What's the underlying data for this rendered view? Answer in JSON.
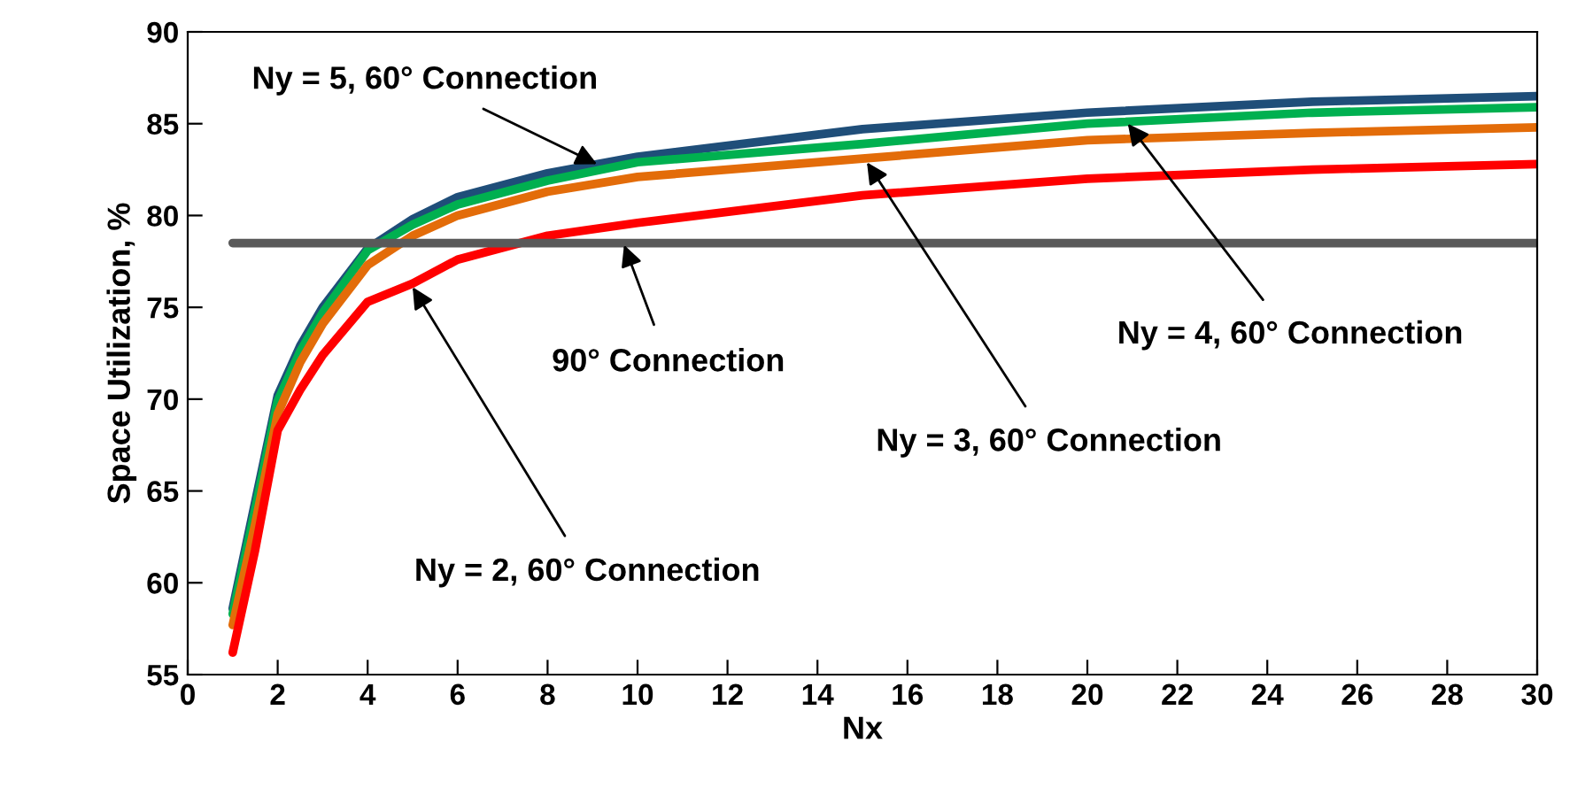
{
  "chart_data": {
    "type": "line",
    "xlabel": "Nx",
    "ylabel": "Space Utilization, %",
    "x": [
      1,
      1.5,
      2,
      2.5,
      3,
      4,
      5,
      6,
      8,
      10,
      15,
      20,
      25,
      30
    ],
    "series": [
      {
        "color": "#1f4e79",
        "values": [
          58.6,
          64.4,
          70.2,
          72.9,
          75.0,
          78.2,
          79.8,
          81.0,
          82.3,
          83.2,
          84.7,
          85.6,
          86.2,
          86.5
        ]
      },
      {
        "color": "#00b050",
        "values": [
          58.3,
          64.0,
          69.9,
          72.6,
          74.7,
          78.1,
          79.5,
          80.6,
          81.9,
          82.9,
          83.9,
          85.0,
          85.6,
          85.9
        ]
      },
      {
        "color": "#e36c09",
        "values": [
          57.7,
          63.2,
          69.2,
          72.0,
          74.1,
          77.3,
          78.9,
          80.0,
          81.3,
          82.1,
          83.1,
          84.1,
          84.5,
          84.8
        ]
      },
      {
        "color": "#ff0000",
        "values": [
          56.2,
          61.8,
          68.3,
          70.5,
          72.4,
          75.3,
          76.3,
          77.6,
          78.9,
          79.6,
          81.1,
          82.0,
          82.5,
          82.8
        ]
      },
      {
        "color": "#595959",
        "x": [
          1,
          30
        ],
        "values": [
          78.5,
          78.5
        ]
      }
    ],
    "annotations": [
      {
        "text": "Ny = 5, 60° Connection",
        "x": 9.1,
        "y": 82.8
      },
      {
        "text": "90° Connection",
        "x": 9.7,
        "y": 78.4
      },
      {
        "text": "Ny = 2, 60° Connection",
        "x": 5.0,
        "y": 76.1
      },
      {
        "text": "Ny = 3, 60° Connection",
        "x": 15.1,
        "y": 82.9
      },
      {
        "text": "Ny = 4, 60° Connection",
        "x": 20.9,
        "y": 85.0
      }
    ],
    "xlim": [
      0,
      30
    ],
    "xticks": [
      0,
      2,
      4,
      6,
      8,
      10,
      12,
      14,
      16,
      18,
      20,
      22,
      24,
      26,
      28,
      30
    ],
    "ylim": [
      55,
      90
    ],
    "yticks": [
      55,
      60,
      65,
      70,
      75,
      80,
      85,
      90
    ],
    "grid": false,
    "legend": false
  }
}
